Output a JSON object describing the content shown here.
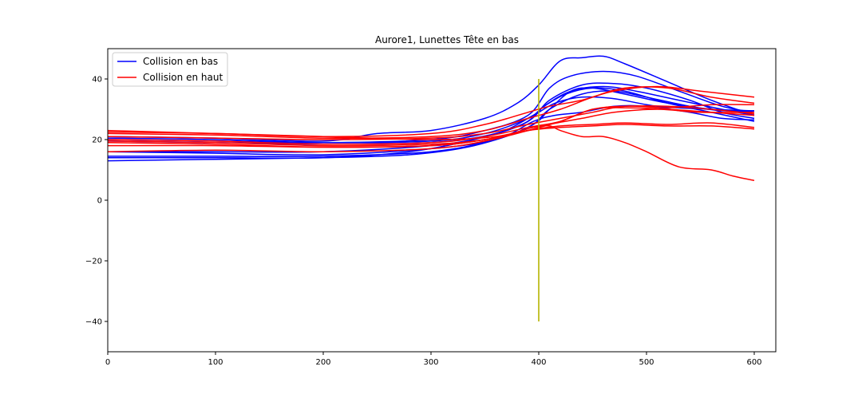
{
  "chart_data": {
    "type": "line",
    "title": "Aurore1, Lunettes Tête en bas",
    "xlabel": "",
    "ylabel": "",
    "xlim": [
      0,
      620
    ],
    "ylim": [
      -50,
      50
    ],
    "x_ticks": [
      0,
      100,
      200,
      300,
      400,
      500,
      600
    ],
    "y_ticks": [
      -40,
      -20,
      0,
      20,
      40
    ],
    "x_tick_labels": [
      "0",
      "100",
      "200",
      "300",
      "400",
      "500",
      "600"
    ],
    "y_tick_labels": [
      "−40",
      "−20",
      "0",
      "20",
      "40"
    ],
    "grid": false,
    "legend": {
      "placement": "top-left",
      "entries": [
        {
          "label": "Collision en bas",
          "color": "#0000ff"
        },
        {
          "label": "Collision en haut",
          "color": "#ff0000"
        }
      ]
    },
    "marker_line": {
      "x": 400,
      "y_from": -40,
      "y_to": 40,
      "color": "#b5b400"
    },
    "series": [
      {
        "group": "Collision en bas",
        "color": "#0000ff",
        "points": [
          [
            0,
            21
          ],
          [
            100,
            20.5
          ],
          [
            200,
            19.5
          ],
          [
            250,
            22
          ],
          [
            300,
            23
          ],
          [
            350,
            27
          ],
          [
            380,
            32
          ],
          [
            400,
            38
          ],
          [
            420,
            46
          ],
          [
            440,
            47
          ],
          [
            460,
            47.5
          ],
          [
            480,
            45
          ],
          [
            520,
            39
          ],
          [
            560,
            33
          ],
          [
            600,
            28
          ]
        ]
      },
      {
        "group": "Collision en bas",
        "color": "#0000ff",
        "points": [
          [
            0,
            20
          ],
          [
            100,
            19.5
          ],
          [
            200,
            19
          ],
          [
            300,
            20
          ],
          [
            350,
            23
          ],
          [
            390,
            28
          ],
          [
            410,
            37
          ],
          [
            430,
            41
          ],
          [
            460,
            42.5
          ],
          [
            490,
            41
          ],
          [
            530,
            36
          ],
          [
            570,
            31
          ],
          [
            600,
            29
          ]
        ]
      },
      {
        "group": "Collision en bas",
        "color": "#0000ff",
        "points": [
          [
            0,
            16
          ],
          [
            100,
            16
          ],
          [
            200,
            16
          ],
          [
            300,
            18
          ],
          [
            350,
            21
          ],
          [
            390,
            26
          ],
          [
            410,
            33
          ],
          [
            440,
            38
          ],
          [
            470,
            38.5
          ],
          [
            500,
            37
          ],
          [
            540,
            33
          ],
          [
            570,
            29
          ],
          [
            600,
            27
          ]
        ]
      },
      {
        "group": "Collision en bas",
        "color": "#0000ff",
        "points": [
          [
            0,
            14
          ],
          [
            100,
            14
          ],
          [
            200,
            14
          ],
          [
            280,
            16
          ],
          [
            340,
            20
          ],
          [
            385,
            25
          ],
          [
            405,
            31
          ],
          [
            430,
            36
          ],
          [
            460,
            37.5
          ],
          [
            490,
            36
          ],
          [
            530,
            33
          ],
          [
            570,
            30
          ],
          [
            600,
            28
          ]
        ]
      },
      {
        "group": "Collision en bas",
        "color": "#0000ff",
        "points": [
          [
            0,
            13
          ],
          [
            100,
            13.5
          ],
          [
            200,
            14
          ],
          [
            280,
            15
          ],
          [
            340,
            18
          ],
          [
            390,
            24
          ],
          [
            410,
            30
          ],
          [
            440,
            35
          ],
          [
            470,
            36
          ],
          [
            500,
            34
          ],
          [
            540,
            31
          ],
          [
            570,
            29.5
          ],
          [
            600,
            29.5
          ]
        ]
      },
      {
        "group": "Collision en bas",
        "color": "#0000ff",
        "points": [
          [
            0,
            20.5
          ],
          [
            100,
            20
          ],
          [
            200,
            19
          ],
          [
            300,
            19.5
          ],
          [
            350,
            22
          ],
          [
            390,
            27
          ],
          [
            405,
            31
          ],
          [
            425,
            35
          ],
          [
            450,
            37
          ],
          [
            480,
            36
          ],
          [
            520,
            32
          ],
          [
            560,
            29
          ],
          [
            600,
            26
          ]
        ]
      },
      {
        "group": "Collision en bas",
        "color": "#0000ff",
        "points": [
          [
            0,
            16
          ],
          [
            100,
            15.5
          ],
          [
            200,
            15
          ],
          [
            300,
            17
          ],
          [
            360,
            20
          ],
          [
            395,
            26
          ],
          [
            415,
            28
          ],
          [
            440,
            29
          ],
          [
            470,
            31
          ],
          [
            500,
            31
          ],
          [
            540,
            29
          ],
          [
            570,
            27
          ],
          [
            600,
            26.5
          ]
        ]
      },
      {
        "group": "Collision en bas",
        "color": "#0000ff",
        "points": [
          [
            0,
            19.5
          ],
          [
            100,
            19
          ],
          [
            200,
            18.5
          ],
          [
            300,
            19
          ],
          [
            360,
            22
          ],
          [
            395,
            28
          ],
          [
            415,
            32
          ],
          [
            440,
            34
          ],
          [
            470,
            33.5
          ],
          [
            510,
            31
          ],
          [
            560,
            30
          ],
          [
            600,
            29.5
          ]
        ]
      },
      {
        "group": "Collision en bas",
        "color": "#0000ff",
        "points": [
          [
            0,
            14.5
          ],
          [
            100,
            14.5
          ],
          [
            200,
            14.5
          ],
          [
            300,
            16
          ],
          [
            360,
            20
          ],
          [
            395,
            25
          ],
          [
            410,
            30
          ],
          [
            430,
            36
          ],
          [
            450,
            37
          ],
          [
            480,
            35
          ],
          [
            520,
            32
          ],
          [
            560,
            30
          ],
          [
            600,
            29
          ]
        ]
      },
      {
        "group": "Collision en haut",
        "color": "#ff0000",
        "points": [
          [
            0,
            23
          ],
          [
            100,
            22
          ],
          [
            200,
            21
          ],
          [
            300,
            20
          ],
          [
            360,
            21
          ],
          [
            395,
            24
          ],
          [
            410,
            24.5
          ],
          [
            420,
            23
          ],
          [
            440,
            21
          ],
          [
            460,
            21
          ],
          [
            480,
            19
          ],
          [
            500,
            16
          ],
          [
            530,
            11
          ],
          [
            560,
            10
          ],
          [
            580,
            8
          ],
          [
            600,
            6.5
          ]
        ]
      },
      {
        "group": "Collision en haut",
        "color": "#ff0000",
        "points": [
          [
            0,
            22.5
          ],
          [
            100,
            22
          ],
          [
            200,
            21
          ],
          [
            300,
            22
          ],
          [
            350,
            25
          ],
          [
            390,
            29
          ],
          [
            410,
            31
          ],
          [
            440,
            33
          ],
          [
            470,
            36
          ],
          [
            510,
            37.5
          ],
          [
            550,
            36
          ],
          [
            600,
            34
          ]
        ]
      },
      {
        "group": "Collision en haut",
        "color": "#ff0000",
        "points": [
          [
            0,
            22
          ],
          [
            100,
            21.5
          ],
          [
            200,
            20.5
          ],
          [
            300,
            21
          ],
          [
            350,
            23
          ],
          [
            390,
            27
          ],
          [
            420,
            30
          ],
          [
            450,
            34
          ],
          [
            480,
            37
          ],
          [
            520,
            37
          ],
          [
            560,
            34
          ],
          [
            600,
            32
          ]
        ]
      },
      {
        "group": "Collision en haut",
        "color": "#ff0000",
        "points": [
          [
            0,
            20
          ],
          [
            100,
            19.5
          ],
          [
            200,
            18.5
          ],
          [
            300,
            19
          ],
          [
            350,
            21
          ],
          [
            390,
            24
          ],
          [
            420,
            26
          ],
          [
            450,
            30
          ],
          [
            480,
            30.5
          ],
          [
            520,
            30
          ],
          [
            560,
            29
          ],
          [
            600,
            28
          ]
        ]
      },
      {
        "group": "Collision en haut",
        "color": "#ff0000",
        "points": [
          [
            0,
            19.5
          ],
          [
            100,
            19
          ],
          [
            200,
            18
          ],
          [
            300,
            18.5
          ],
          [
            350,
            20
          ],
          [
            390,
            23
          ],
          [
            420,
            24.5
          ],
          [
            450,
            25
          ],
          [
            480,
            25.5
          ],
          [
            520,
            25
          ],
          [
            560,
            25.5
          ],
          [
            600,
            24
          ]
        ]
      },
      {
        "group": "Collision en haut",
        "color": "#ff0000",
        "points": [
          [
            0,
            18
          ],
          [
            100,
            18
          ],
          [
            200,
            17.5
          ],
          [
            300,
            18
          ],
          [
            350,
            20
          ],
          [
            390,
            23
          ],
          [
            420,
            24
          ],
          [
            450,
            24.5
          ],
          [
            480,
            25
          ],
          [
            520,
            24.5
          ],
          [
            560,
            24.5
          ],
          [
            600,
            23.5
          ]
        ]
      },
      {
        "group": "Collision en haut",
        "color": "#ff0000",
        "points": [
          [
            0,
            21
          ],
          [
            100,
            20.5
          ],
          [
            200,
            20
          ],
          [
            300,
            20.5
          ],
          [
            350,
            22
          ],
          [
            390,
            25
          ],
          [
            420,
            27
          ],
          [
            450,
            29
          ],
          [
            480,
            31
          ],
          [
            520,
            30.5
          ],
          [
            560,
            31.5
          ],
          [
            600,
            31.5
          ]
        ]
      },
      {
        "group": "Collision en haut",
        "color": "#ff0000",
        "points": [
          [
            0,
            19
          ],
          [
            100,
            18.5
          ],
          [
            200,
            17.5
          ],
          [
            300,
            18
          ],
          [
            350,
            20
          ],
          [
            390,
            23
          ],
          [
            410,
            25
          ],
          [
            440,
            27
          ],
          [
            470,
            29
          ],
          [
            510,
            30
          ],
          [
            550,
            29
          ],
          [
            600,
            29
          ]
        ]
      },
      {
        "group": "Collision en haut",
        "color": "#ff0000",
        "points": [
          [
            0,
            16
          ],
          [
            100,
            16.5
          ],
          [
            200,
            16
          ],
          [
            300,
            17
          ],
          [
            350,
            19.5
          ],
          [
            390,
            23
          ],
          [
            420,
            26
          ],
          [
            450,
            30
          ],
          [
            480,
            31
          ],
          [
            520,
            31
          ],
          [
            560,
            30
          ],
          [
            600,
            28.5
          ]
        ]
      }
    ]
  }
}
